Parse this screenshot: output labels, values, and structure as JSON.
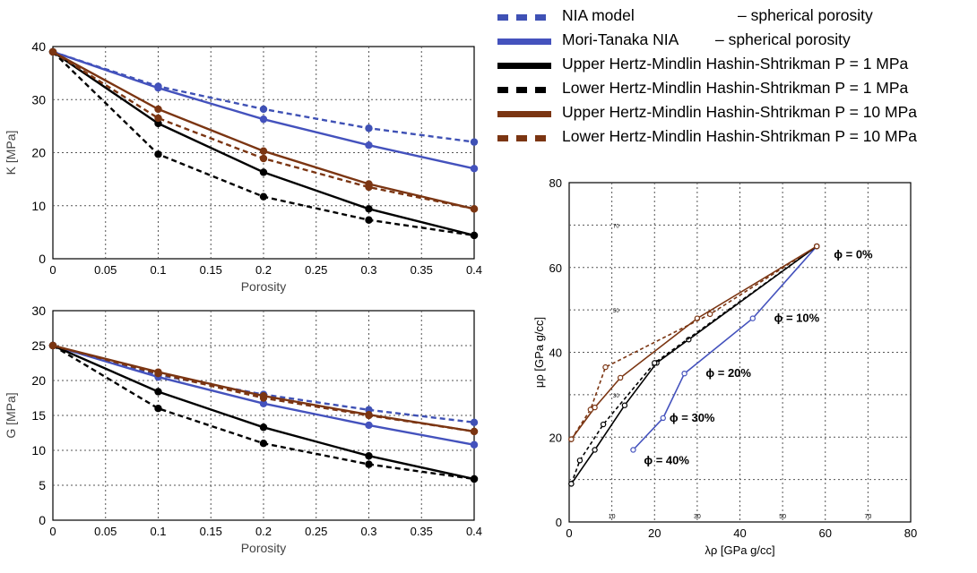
{
  "legend": [
    {
      "name": "NIA model",
      "desc": "– spherical porosity",
      "color": "#3f51b5",
      "style": "dashed"
    },
    {
      "name": "Mori-Tanaka NIA",
      "desc": "– spherical porosity",
      "color": "#4452bd",
      "style": "solid"
    },
    {
      "name": "Upper Hertz-Mindlin Hashin-Shtrikman P = 1 MPa",
      "desc": "",
      "color": "#000000",
      "style": "solid"
    },
    {
      "name": "Lower Hertz-Mindlin Hashin-Shtrikman P = 1 MPa",
      "desc": "",
      "color": "#000000",
      "style": "dashed"
    },
    {
      "name": "Upper Hertz-Mindlin Hashin-Shtrikman P = 10 MPa",
      "desc": "",
      "color": "#7b3512",
      "style": "solid"
    },
    {
      "name": "Lower Hertz-Mindlin Hashin-Shtrikman P = 10 MPa",
      "desc": "",
      "color": "#7b3512",
      "style": "dashed"
    }
  ],
  "chart_data": [
    {
      "type": "line",
      "xlabel": "Porosity",
      "ylabel": "K [MPa]",
      "xlim": [
        0,
        0.4
      ],
      "ylim": [
        0,
        40
      ],
      "grid": true,
      "xticks": [
        "0",
        "0.05",
        "0.1",
        "0.15",
        "0.2",
        "0.25",
        "0.3",
        "0.35",
        "0.4"
      ],
      "yticks": [
        "0",
        "10",
        "20",
        "30",
        "40"
      ],
      "x": [
        0,
        0.1,
        0.2,
        0.3,
        0.4
      ],
      "series": [
        {
          "name": "NIA model",
          "values": [
            39,
            32.5,
            28.2,
            24.6,
            22
          ]
        },
        {
          "name": "Mori-Tanaka NIA",
          "values": [
            39,
            32.2,
            26.3,
            21.4,
            17
          ]
        },
        {
          "name": "Upper Hertz-Mindlin Hashin-Shtrikman P = 1 MPa",
          "values": [
            39,
            25.5,
            16.3,
            9.4,
            4.4
          ]
        },
        {
          "name": "Lower Hertz-Mindlin Hashin-Shtrikman P = 1 MPa",
          "values": [
            39,
            19.7,
            11.7,
            7.3,
            4.4
          ]
        },
        {
          "name": "Upper Hertz-Mindlin Hashin-Shtrikman P = 10 MPa",
          "values": [
            39,
            28.2,
            20.3,
            14.1,
            9.4
          ]
        },
        {
          "name": "Lower Hertz-Mindlin Hashin-Shtrikman P = 10 MPa",
          "values": [
            39,
            26.5,
            18.9,
            13.5,
            9.4
          ]
        }
      ]
    },
    {
      "type": "line",
      "xlabel": "Porosity",
      "ylabel": "G [MPa]",
      "xlim": [
        0,
        0.4
      ],
      "ylim": [
        0,
        30
      ],
      "grid": true,
      "xticks": [
        "0",
        "0.05",
        "0.1",
        "0.15",
        "0.2",
        "0.25",
        "0.3",
        "0.35",
        "0.4"
      ],
      "yticks": [
        "0",
        "5",
        "10",
        "15",
        "20",
        "25",
        "30"
      ],
      "x": [
        0,
        0.1,
        0.2,
        0.3,
        0.4
      ],
      "series": [
        {
          "name": "NIA model",
          "values": [
            25,
            20.8,
            18,
            15.8,
            14
          ]
        },
        {
          "name": "Mori-Tanaka NIA",
          "values": [
            25,
            20.5,
            16.7,
            13.6,
            10.8
          ]
        },
        {
          "name": "Upper Hertz-Mindlin Hashin-Shtrikman P = 1 MPa",
          "values": [
            25,
            18.4,
            13.3,
            9.2,
            5.9
          ]
        },
        {
          "name": "Lower Hertz-Mindlin Hashin-Shtrikman P = 1 MPa",
          "values": [
            25,
            16,
            11,
            8,
            5.9
          ]
        },
        {
          "name": "Upper Hertz-Mindlin Hashin-Shtrikman P = 10 MPa",
          "values": [
            25,
            21.2,
            17.8,
            15.1,
            12.7
          ]
        },
        {
          "name": "Lower Hertz-Mindlin Hashin-Shtrikman P = 10 MPa",
          "values": [
            25,
            21,
            17.5,
            15,
            12.7
          ]
        }
      ]
    },
    {
      "type": "line",
      "xlabel": "λρ [GPa g/cc]",
      "ylabel": "μρ [GPa g/cc]",
      "xlim": [
        0,
        80
      ],
      "ylim": [
        0,
        80
      ],
      "grid": true,
      "xticks": [
        "0",
        "20",
        "40",
        "60",
        "80"
      ],
      "yticks": [
        "0",
        "20",
        "40",
        "60",
        "80"
      ],
      "minor_xticks": [
        "10",
        "30",
        "50",
        "70"
      ],
      "minor_yticks": [
        "30",
        "50",
        "70"
      ],
      "series": [
        {
          "name": "Mori-Tanaka NIA",
          "points": [
            [
              15,
              17
            ],
            [
              22,
              24.5
            ],
            [
              27,
              35
            ],
            [
              43,
              48
            ],
            [
              58,
              65
            ]
          ]
        },
        {
          "name": "Upper Hertz-Mindlin Hashin-Shtrikman P = 1 MPa",
          "points": [
            [
              0.5,
              9
            ],
            [
              6,
              17
            ],
            [
              13,
              27.5
            ],
            [
              20.5,
              37.5
            ],
            [
              28,
              43
            ],
            [
              58,
              65
            ]
          ]
        },
        {
          "name": "Lower Hertz-Mindlin Hashin-Shtrikman P = 1 MPa",
          "points": [
            [
              0.5,
              9
            ],
            [
              2.5,
              14.5
            ],
            [
              8,
              23
            ],
            [
              20,
              37.5
            ],
            [
              58,
              65
            ]
          ]
        },
        {
          "name": "Upper Hertz-Mindlin Hashin-Shtrikman P = 10 MPa",
          "points": [
            [
              0.5,
              19.5
            ],
            [
              6,
              27
            ],
            [
              12,
              34
            ],
            [
              30,
              48
            ],
            [
              58,
              65
            ]
          ]
        },
        {
          "name": "Lower Hertz-Mindlin Hashin-Shtrikman P = 10 MPa",
          "points": [
            [
              0.5,
              19.5
            ],
            [
              5,
              26.5
            ],
            [
              8.5,
              36.5
            ],
            [
              33,
              49
            ],
            [
              58,
              65
            ]
          ]
        }
      ],
      "annotations": [
        {
          "text": "ϕ = 0%",
          "x": 62,
          "y": 63
        },
        {
          "text": "ϕ = 10%",
          "x": 48,
          "y": 48
        },
        {
          "text": "ϕ = 20%",
          "x": 32,
          "y": 35
        },
        {
          "text": "ϕ = 30%",
          "x": 23.5,
          "y": 24.5
        },
        {
          "text": "ϕ = 40%",
          "x": 17.5,
          "y": 14.5
        }
      ]
    }
  ]
}
